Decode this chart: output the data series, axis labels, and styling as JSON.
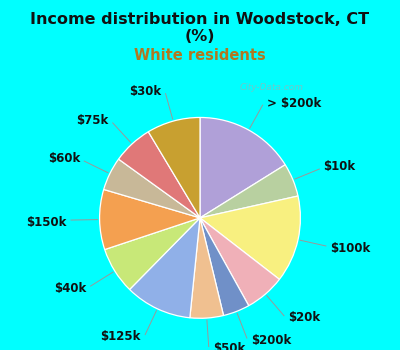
{
  "title_line1": "Income distribution in Woodstock, CT",
  "title_line2": "(%)",
  "subtitle": "White residents",
  "title_color": "#111111",
  "subtitle_color": "#b07820",
  "bg_cyan": "#00ffff",
  "bg_chart_color": "#d8eee8",
  "watermark": "City-Data.com",
  "labels": [
    "> $200k",
    "$10k",
    "$100k",
    "$20k",
    "$200k",
    "$50k",
    "$125k",
    "$40k",
    "$150k",
    "$60k",
    "$75k",
    "$30k"
  ],
  "values": [
    15,
    5,
    13,
    6,
    4,
    5,
    10,
    7,
    9,
    5,
    6,
    8
  ],
  "colors": [
    "#b0a0d8",
    "#b8d0a0",
    "#f8f080",
    "#f0b0b8",
    "#7090c8",
    "#f0c090",
    "#90b0e8",
    "#c8e878",
    "#f4a050",
    "#c8b898",
    "#e07878",
    "#c8a030"
  ],
  "edge_color": "#ffffff",
  "label_fontsize": 8.5,
  "startangle": 90
}
